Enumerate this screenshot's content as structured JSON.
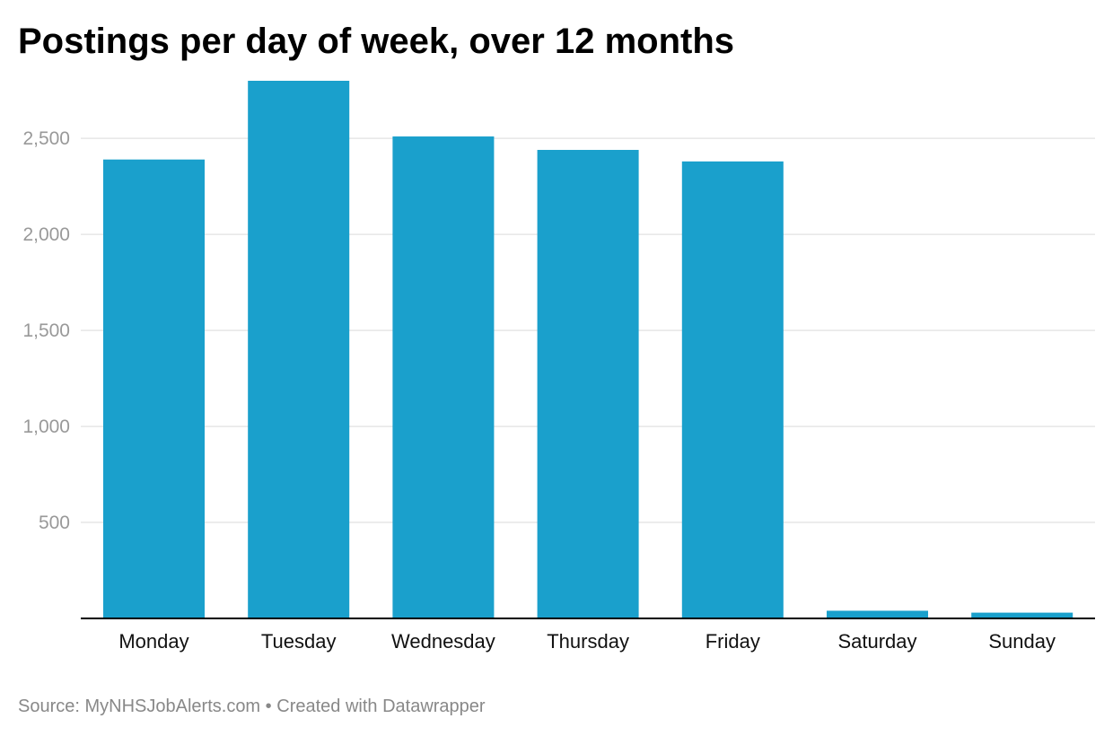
{
  "header": {
    "title": "Postings per day of week, over 12 months"
  },
  "footer": {
    "source_label": "Source:",
    "source_name": "MyNHSJobAlerts.com",
    "separator": "•",
    "credit": "Created with Datawrapper"
  },
  "chart_data": {
    "type": "bar",
    "title": "Postings per day of week, over 12 months",
    "xlabel": "",
    "ylabel": "",
    "categories": [
      "Monday",
      "Tuesday",
      "Wednesday",
      "Thursday",
      "Friday",
      "Saturday",
      "Sunday"
    ],
    "values": [
      2390,
      2800,
      2510,
      2440,
      2380,
      40,
      30
    ],
    "ylim": [
      0,
      2800
    ],
    "yticks": [
      500,
      1000,
      1500,
      2000,
      2500
    ],
    "ytick_labels": [
      "500",
      "1,000",
      "1,500",
      "2,000",
      "2,500"
    ],
    "grid": true,
    "legend": "none",
    "bar_color": "#1aa0cc",
    "grid_color": "#e6e6e6",
    "axis_color": "#000000",
    "tick_label_color": "#999999",
    "category_label_color": "#111111"
  }
}
